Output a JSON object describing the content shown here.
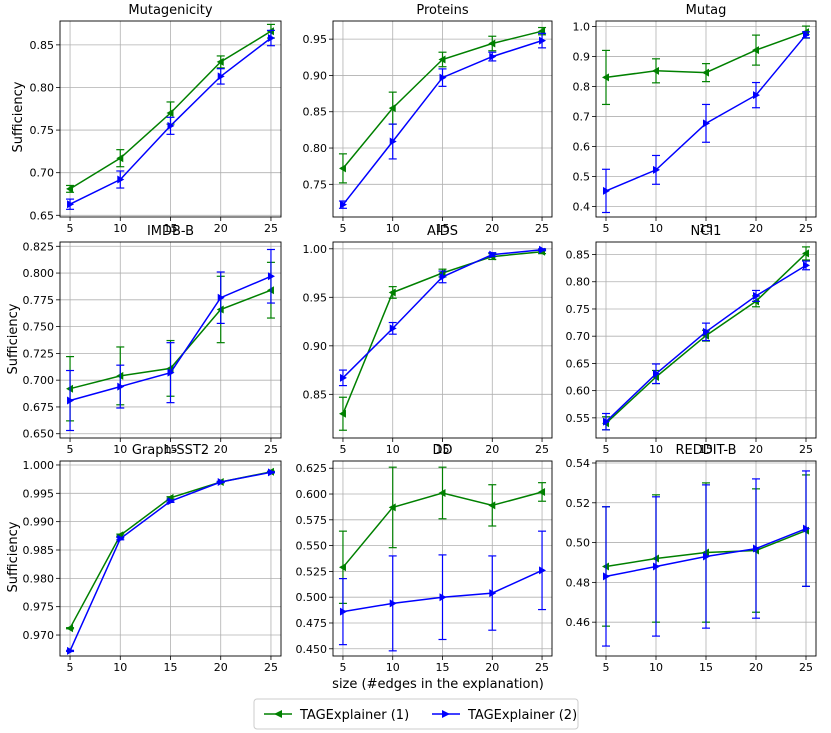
{
  "figure": {
    "x_label": "size (#edges in the explanation)",
    "y_label": "Sufficiency"
  },
  "legend": {
    "items": [
      {
        "label": "TAGExplainer (1)",
        "color": "#008000",
        "marker": "left-triangle"
      },
      {
        "label": "TAGExplainer (2)",
        "color": "#0000ff",
        "marker": "right-triangle"
      }
    ]
  },
  "colors": {
    "series1": "#008000",
    "series2": "#0000ff",
    "grid": "#b0b0b0"
  },
  "chart_data": [
    {
      "type": "line",
      "title": "Mutagenicity",
      "x": [
        5,
        10,
        15,
        20,
        25
      ],
      "ylim": [
        0.648,
        0.878
      ],
      "yticks": [
        0.65,
        0.7,
        0.75,
        0.8,
        0.85
      ],
      "ytick_labels": [
        "0.65",
        "0.70",
        "0.75",
        "0.80",
        "0.85"
      ],
      "series": [
        {
          "name": "TAGExplainer (1)",
          "values": [
            0.681,
            0.717,
            0.77,
            0.83,
            0.866
          ],
          "errors": [
            0.004,
            0.01,
            0.013,
            0.007,
            0.008
          ]
        },
        {
          "name": "TAGExplainer (2)",
          "values": [
            0.663,
            0.692,
            0.755,
            0.813,
            0.858
          ],
          "errors": [
            0.006,
            0.01,
            0.01,
            0.009,
            0.009
          ]
        }
      ]
    },
    {
      "type": "line",
      "title": "Proteins",
      "x": [
        5,
        10,
        15,
        20,
        25
      ],
      "ylim": [
        0.705,
        0.975
      ],
      "yticks": [
        0.75,
        0.8,
        0.85,
        0.9,
        0.95
      ],
      "ytick_labels": [
        "0.75",
        "0.80",
        "0.85",
        "0.90",
        "0.95"
      ],
      "series": [
        {
          "name": "TAGExplainer (1)",
          "values": [
            0.772,
            0.855,
            0.922,
            0.944,
            0.961
          ],
          "errors": [
            0.02,
            0.022,
            0.01,
            0.01,
            0.005
          ]
        },
        {
          "name": "TAGExplainer (2)",
          "values": [
            0.722,
            0.809,
            0.897,
            0.926,
            0.948
          ],
          "errors": [
            0.005,
            0.024,
            0.012,
            0.006,
            0.01
          ]
        }
      ]
    },
    {
      "type": "line",
      "title": "Mutag",
      "x": [
        5,
        10,
        15,
        20,
        25
      ],
      "ylim": [
        0.365,
        1.018
      ],
      "yticks": [
        0.4,
        0.5,
        0.6,
        0.7,
        0.8,
        0.9,
        1.0
      ],
      "ytick_labels": [
        "0.4",
        "0.5",
        "0.6",
        "0.7",
        "0.8",
        "0.9",
        "1.0"
      ],
      "series": [
        {
          "name": "TAGExplainer (1)",
          "values": [
            0.83,
            0.852,
            0.846,
            0.921,
            0.981
          ],
          "errors": [
            0.09,
            0.04,
            0.03,
            0.05,
            0.02
          ]
        },
        {
          "name": "TAGExplainer (2)",
          "values": [
            0.452,
            0.522,
            0.677,
            0.771,
            0.972
          ],
          "errors": [
            0.072,
            0.048,
            0.063,
            0.042,
            0.01
          ]
        }
      ]
    },
    {
      "type": "line",
      "title": "IMDB-B",
      "x": [
        5,
        10,
        15,
        20,
        25
      ],
      "ylim": [
        0.646,
        0.829
      ],
      "yticks": [
        0.65,
        0.675,
        0.7,
        0.725,
        0.75,
        0.775,
        0.8,
        0.825
      ],
      "ytick_labels": [
        "0.650",
        "0.675",
        "0.700",
        "0.725",
        "0.750",
        "0.775",
        "0.800",
        "0.825"
      ],
      "series": [
        {
          "name": "TAGExplainer (1)",
          "values": [
            0.692,
            0.704,
            0.711,
            0.766,
            0.784
          ],
          "errors": [
            0.03,
            0.027,
            0.026,
            0.031,
            0.026
          ]
        },
        {
          "name": "TAGExplainer (2)",
          "values": [
            0.681,
            0.694,
            0.707,
            0.777,
            0.797
          ],
          "errors": [
            0.028,
            0.02,
            0.028,
            0.024,
            0.025
          ]
        }
      ]
    },
    {
      "type": "line",
      "title": "AIDS",
      "x": [
        5,
        10,
        15,
        20,
        25
      ],
      "ylim": [
        0.805,
        1.007
      ],
      "yticks": [
        0.85,
        0.9,
        0.95,
        1.0
      ],
      "ytick_labels": [
        "0.85",
        "0.90",
        "0.95",
        "1.00"
      ],
      "series": [
        {
          "name": "TAGExplainer (1)",
          "values": [
            0.83,
            0.955,
            0.975,
            0.992,
            0.997
          ],
          "errors": [
            0.017,
            0.006,
            0.004,
            0.003,
            0.002
          ]
        },
        {
          "name": "TAGExplainer (2)",
          "values": [
            0.867,
            0.918,
            0.971,
            0.994,
            0.999
          ],
          "errors": [
            0.008,
            0.006,
            0.006,
            0.002,
            0.001
          ]
        }
      ]
    },
    {
      "type": "line",
      "title": "NCI1",
      "x": [
        5,
        10,
        15,
        20,
        25
      ],
      "ylim": [
        0.513,
        0.873
      ],
      "yticks": [
        0.55,
        0.6,
        0.65,
        0.7,
        0.75,
        0.8,
        0.85
      ],
      "ytick_labels": [
        "0.55",
        "0.60",
        "0.65",
        "0.70",
        "0.75",
        "0.80",
        "0.85"
      ],
      "series": [
        {
          "name": "TAGExplainer (1)",
          "values": [
            0.54,
            0.625,
            0.701,
            0.764,
            0.852
          ],
          "errors": [
            0.012,
            0.012,
            0.01,
            0.01,
            0.012
          ]
        },
        {
          "name": "TAGExplainer (2)",
          "values": [
            0.543,
            0.631,
            0.708,
            0.774,
            0.83
          ],
          "errors": [
            0.015,
            0.018,
            0.016,
            0.01,
            0.008
          ]
        }
      ]
    },
    {
      "type": "line",
      "title": "Graph-SST2",
      "x": [
        5,
        10,
        15,
        20,
        25
      ],
      "ylim": [
        0.9663,
        1.0007
      ],
      "yticks": [
        0.97,
        0.975,
        0.98,
        0.985,
        0.99,
        0.995,
        1.0
      ],
      "ytick_labels": [
        "0.970",
        "0.975",
        "0.980",
        "0.985",
        "0.990",
        "0.995",
        "1.000"
      ],
      "series": [
        {
          "name": "TAGExplainer (1)",
          "values": [
            0.9712,
            0.9876,
            0.9942,
            0.997,
            0.9988
          ],
          "errors": [
            0.0001,
            0.0002,
            0.0002,
            0.0001,
            0.0001
          ]
        },
        {
          "name": "TAGExplainer (2)",
          "values": [
            0.9672,
            0.987,
            0.9936,
            0.997,
            0.9987
          ],
          "errors": [
            0.0001,
            0.0002,
            0.0002,
            0.0001,
            0.0001
          ]
        }
      ]
    },
    {
      "type": "line",
      "title": "DD",
      "x": [
        5,
        10,
        15,
        20,
        25
      ],
      "ylim": [
        0.443,
        0.632
      ],
      "yticks": [
        0.45,
        0.475,
        0.5,
        0.525,
        0.55,
        0.575,
        0.6,
        0.625
      ],
      "ytick_labels": [
        "0.450",
        "0.475",
        "0.500",
        "0.525",
        "0.550",
        "0.575",
        "0.600",
        "0.625"
      ],
      "series": [
        {
          "name": "TAGExplainer (1)",
          "values": [
            0.529,
            0.587,
            0.601,
            0.589,
            0.602
          ],
          "errors": [
            0.035,
            0.039,
            0.025,
            0.02,
            0.009
          ]
        },
        {
          "name": "TAGExplainer (2)",
          "values": [
            0.486,
            0.494,
            0.5,
            0.504,
            0.526
          ],
          "errors": [
            0.032,
            0.046,
            0.041,
            0.036,
            0.038
          ]
        }
      ]
    },
    {
      "type": "line",
      "title": "REDDIT-B",
      "x": [
        5,
        10,
        15,
        20,
        25
      ],
      "ylim": [
        0.443,
        0.541
      ],
      "yticks": [
        0.46,
        0.48,
        0.5,
        0.52,
        0.54
      ],
      "ytick_labels": [
        "0.46",
        "0.48",
        "0.50",
        "0.52",
        "0.54"
      ],
      "series": [
        {
          "name": "TAGExplainer (1)",
          "values": [
            0.488,
            0.492,
            0.495,
            0.496,
            0.506
          ],
          "errors": [
            0.03,
            0.032,
            0.035,
            0.031,
            0.028
          ]
        },
        {
          "name": "TAGExplainer (2)",
          "values": [
            0.483,
            0.488,
            0.493,
            0.497,
            0.507
          ],
          "errors": [
            0.035,
            0.035,
            0.036,
            0.035,
            0.029
          ]
        }
      ]
    }
  ]
}
